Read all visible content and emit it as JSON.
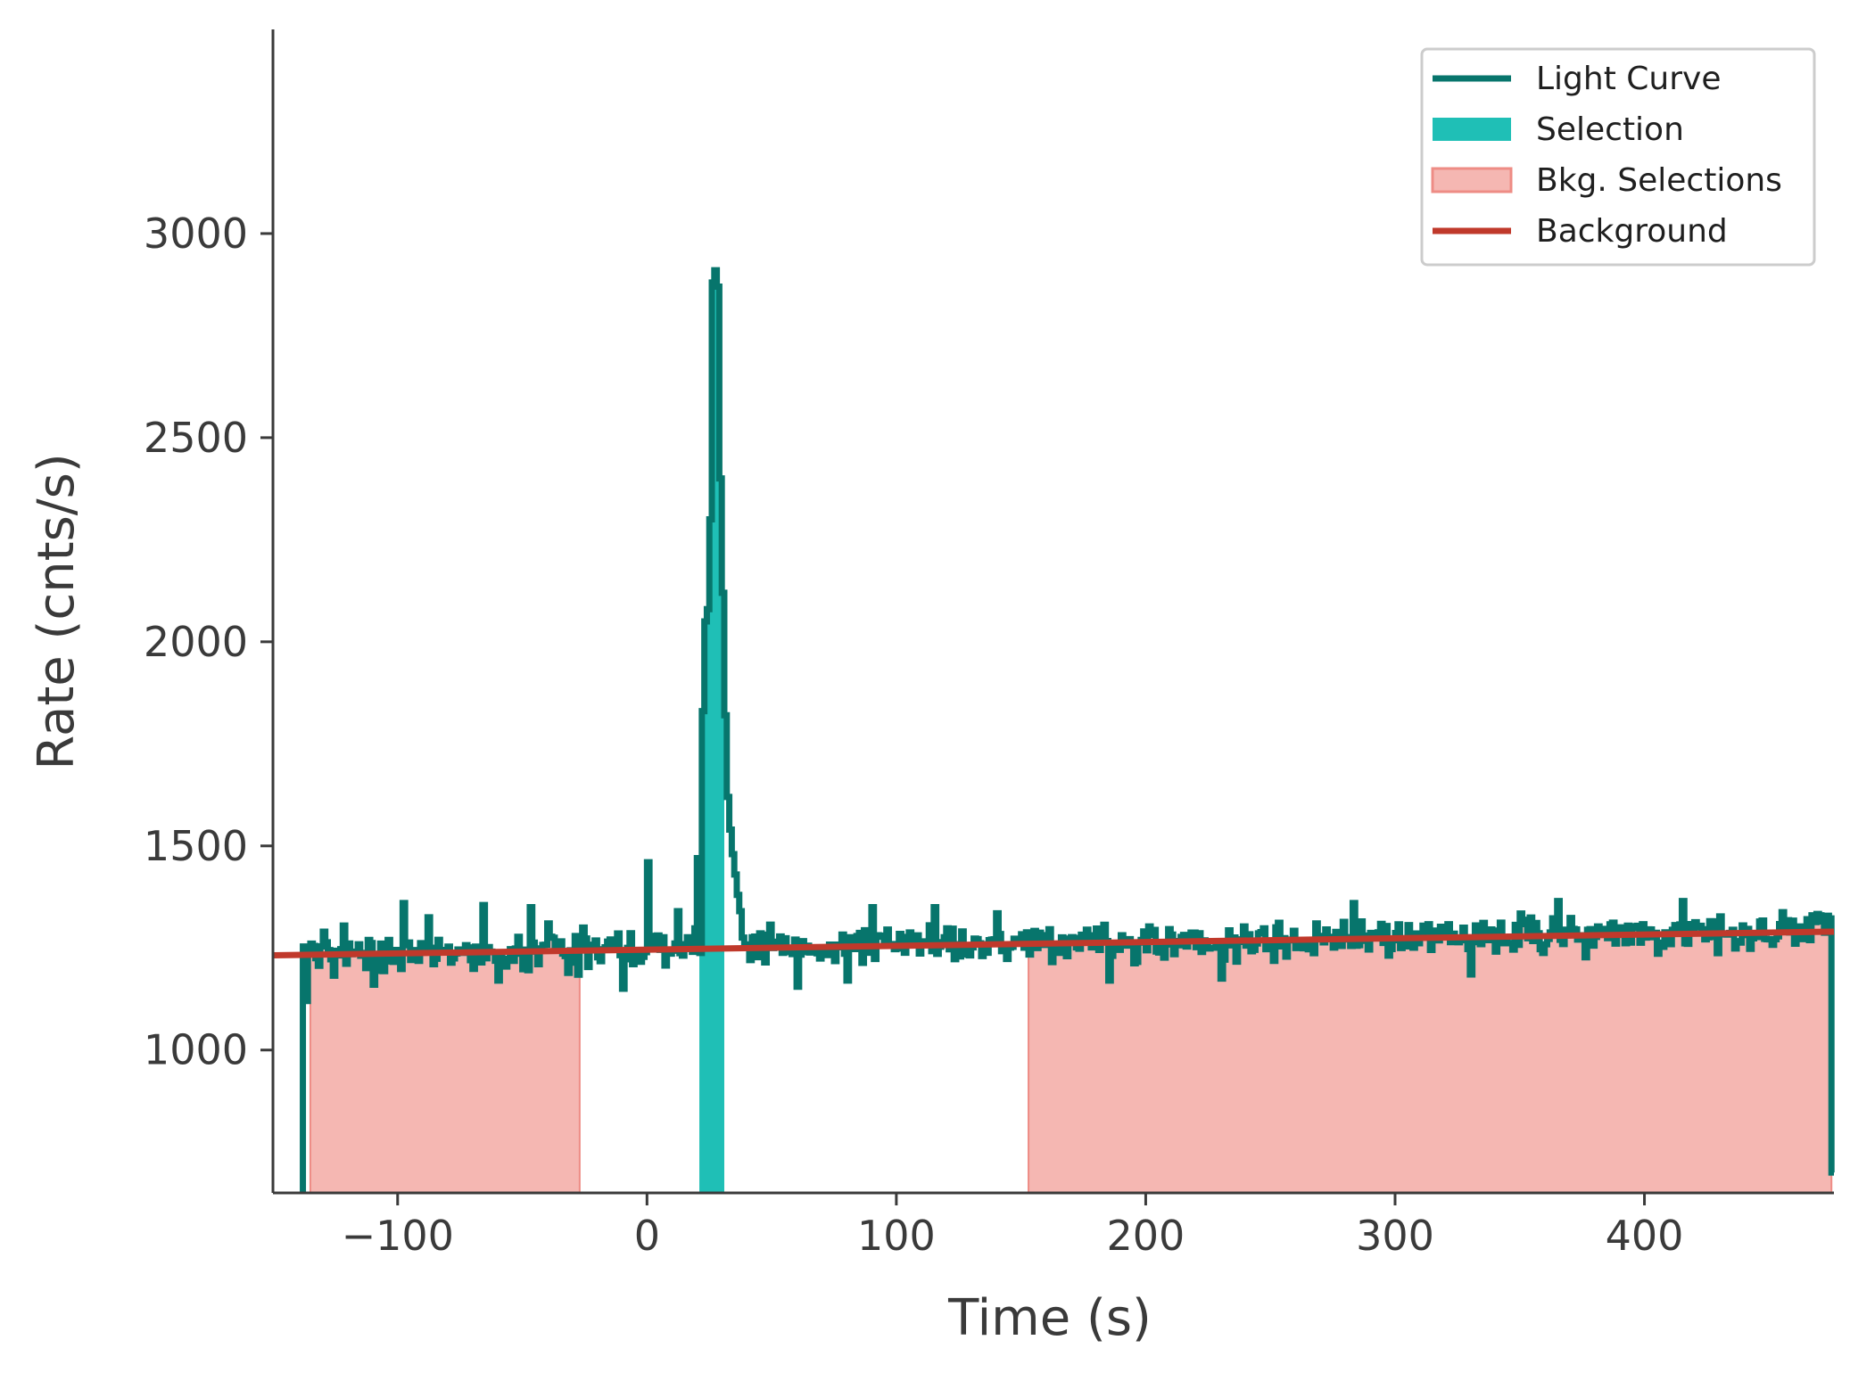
{
  "chart_data": {
    "type": "line",
    "title": "",
    "xlabel": "Time (s)",
    "ylabel": "Rate (cnts/s)",
    "xlim": [
      -150,
      476
    ],
    "ylim": [
      650,
      3500
    ],
    "xticks": [
      -100,
      0,
      100,
      200,
      300,
      400
    ],
    "xtick_labels": [
      "−100",
      "0",
      "100",
      "200",
      "300",
      "400"
    ],
    "yticks": [
      1000,
      1500,
      2000,
      2500,
      3000
    ],
    "ytick_labels": [
      "1000",
      "1500",
      "2000",
      "2500",
      "3000"
    ],
    "legend_position": "top-right",
    "colors": {
      "light_curve": "#07756c",
      "selection": "#1fbfb6",
      "bkg_fill": "#f5b7b2",
      "bkg_edge": "#ee8c85",
      "background": "#c0392b",
      "axis": "#3a3a3a"
    },
    "legend": [
      {
        "key": "light_curve",
        "label": "Light Curve",
        "kind": "line"
      },
      {
        "key": "selection",
        "label": "Selection",
        "kind": "patch"
      },
      {
        "key": "bkg",
        "label": "Bkg. Selections",
        "kind": "patch_edge"
      },
      {
        "key": "background",
        "label": "Background",
        "kind": "line"
      }
    ],
    "selection": {
      "name": "Selection",
      "range": [
        21,
        31
      ]
    },
    "bkg_selections": [
      {
        "name": "Bkg. Selections",
        "range": [
          -135,
          -27
        ]
      },
      {
        "name": "Bkg. Selections",
        "range": [
          153,
          475
        ]
      }
    ],
    "background_model": {
      "name": "Background",
      "x": [
        -150,
        476
      ],
      "y": [
        1232,
        1290
      ]
    },
    "light_curve": {
      "name": "Light Curve",
      "x_start": -138,
      "bin_width": 1,
      "base_start": 1232,
      "base_end": 1290,
      "noise_amplitude": 28,
      "spikes": [
        {
          "x": -137,
          "y": 1120
        },
        {
          "x": -130,
          "y": 1290
        },
        {
          "x": -122,
          "y": 1305
        },
        {
          "x": -98,
          "y": 1360
        },
        {
          "x": -88,
          "y": 1325
        },
        {
          "x": -66,
          "y": 1355
        },
        {
          "x": -47,
          "y": 1350
        },
        {
          "x": -40,
          "y": 1310
        },
        {
          "x": -26,
          "y": 1300
        },
        {
          "x": -10,
          "y": 1290
        },
        {
          "x": 0,
          "y": 1460
        },
        {
          "x": 12,
          "y": 1340
        },
        {
          "x": 20,
          "y": 1470
        },
        {
          "x": 22,
          "y": 1830
        },
        {
          "x": 23,
          "y": 2050
        },
        {
          "x": 24,
          "y": 2080
        },
        {
          "x": 25,
          "y": 2300
        },
        {
          "x": 26,
          "y": 2880
        },
        {
          "x": 27,
          "y": 2910
        },
        {
          "x": 28,
          "y": 2870
        },
        {
          "x": 29,
          "y": 2400
        },
        {
          "x": 30,
          "y": 2120
        },
        {
          "x": 31,
          "y": 1820
        },
        {
          "x": 32,
          "y": 1620
        },
        {
          "x": 33,
          "y": 1540
        },
        {
          "x": 34,
          "y": 1480
        },
        {
          "x": 35,
          "y": 1430
        },
        {
          "x": 36,
          "y": 1380
        },
        {
          "x": 37,
          "y": 1340
        },
        {
          "x": 90,
          "y": 1350
        },
        {
          "x": 115,
          "y": 1350
        },
        {
          "x": 140,
          "y": 1335
        },
        {
          "x": 185,
          "y": 1170
        },
        {
          "x": 283,
          "y": 1360
        },
        {
          "x": 365,
          "y": 1365
        },
        {
          "x": 415,
          "y": 1365
        },
        {
          "x": 470,
          "y": 1330
        },
        {
          "x": 475,
          "y": 700
        }
      ],
      "dips": [
        {
          "x": -110,
          "y": 1160
        },
        {
          "x": -60,
          "y": 1170
        },
        {
          "x": -10,
          "y": 1150
        },
        {
          "x": 60,
          "y": 1155
        },
        {
          "x": 80,
          "y": 1170
        },
        {
          "x": 230,
          "y": 1175
        },
        {
          "x": 330,
          "y": 1185
        }
      ]
    }
  }
}
